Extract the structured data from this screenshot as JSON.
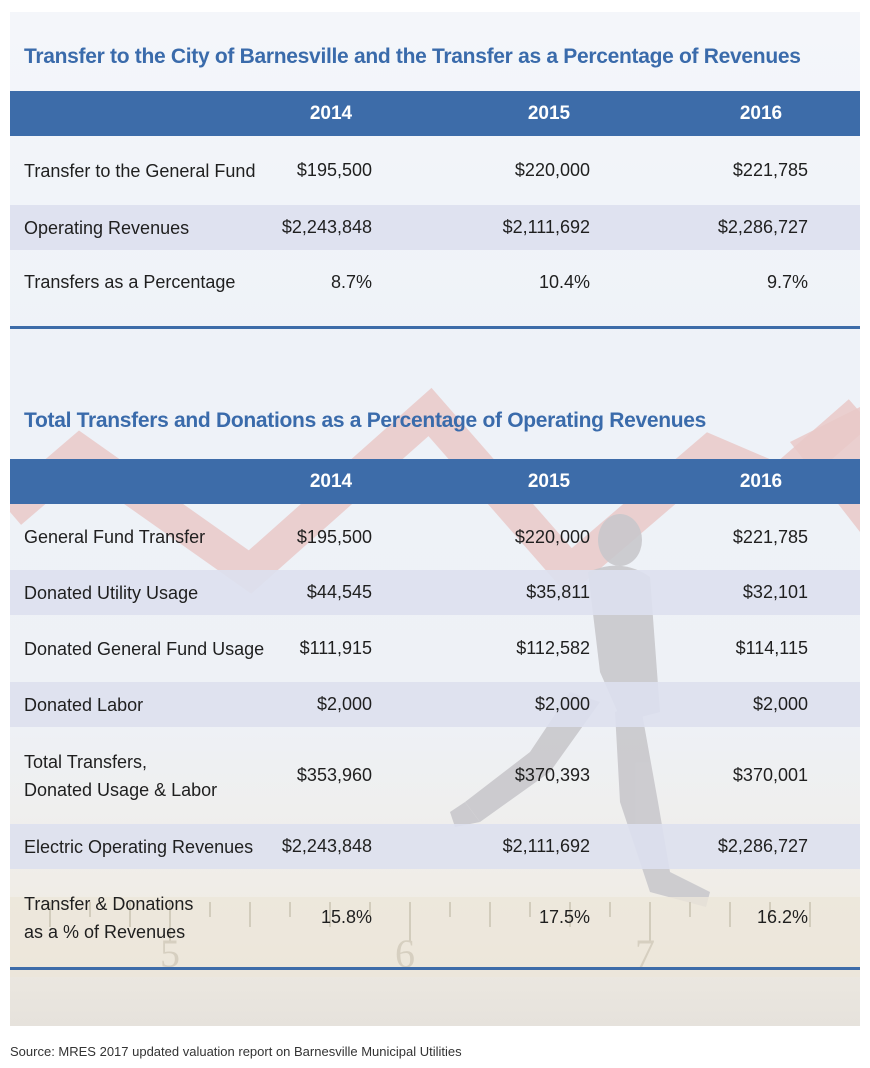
{
  "table1": {
    "title": "Transfer to the City of Barnesville and the Transfer as a Percentage of Revenues",
    "years": [
      "2014",
      "2015",
      "2016"
    ],
    "rows": [
      {
        "label": "Transfer to the General Fund",
        "values": [
          "$195,500",
          "$220,000",
          "$221,785"
        ]
      },
      {
        "label": "Operating Revenues",
        "values": [
          "$2,243,848",
          "$2,111,692",
          "$2,286,727"
        ]
      },
      {
        "label": "Transfers as a Percentage",
        "values": [
          "8.7%",
          "10.4%",
          "9.7%"
        ]
      }
    ]
  },
  "table2": {
    "title": "Total Transfers and Donations as a Percentage of Operating Revenues",
    "years": [
      "2014",
      "2015",
      "2016"
    ],
    "rows": [
      {
        "label": "General Fund Transfer",
        "values": [
          "$195,500",
          "$220,000",
          "$221,785"
        ]
      },
      {
        "label": "Donated Utility Usage",
        "values": [
          "$44,545",
          "$35,811",
          "$32,101"
        ]
      },
      {
        "label": "Donated General Fund Usage",
        "values": [
          "$111,915",
          "$112,582",
          "$114,115"
        ]
      },
      {
        "label": "Donated Labor",
        "values": [
          "$2,000",
          "$2,000",
          "$2,000"
        ]
      },
      {
        "label_line1": "Total Transfers,",
        "label_line2": "Donated Usage & Labor",
        "values": [
          "$353,960",
          "$370,393",
          "$370,001"
        ]
      },
      {
        "label": "Electric Operating Revenues",
        "values": [
          "$2,243,848",
          "$2,111,692",
          "$2,286,727"
        ]
      },
      {
        "label_line1": "Transfer & Donations",
        "label_line2": "as a % of Revenues",
        "values": [
          "15.8%",
          "17.5%",
          "16.2%"
        ]
      }
    ]
  },
  "ruler_numbers": [
    "5",
    "6",
    "7"
  ],
  "source": "Source: MRES 2017 updated valuation report on Barnesville Municipal Utilities",
  "colors": {
    "header": "#3d6ca9",
    "title": "#3a6bab",
    "shaded_row": "#dde0ee"
  }
}
